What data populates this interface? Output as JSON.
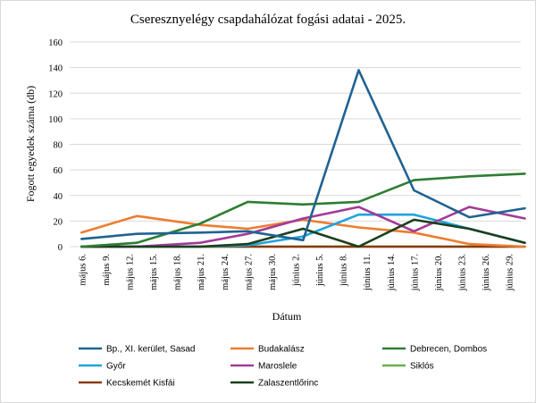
{
  "chart_data": {
    "type": "line",
    "title": "Cseresznyelégy csapdahálózat fogási adatai - 2025.",
    "xlabel": "Dátum",
    "ylabel": "Fogott egyedek száma (db)",
    "ylim": [
      0,
      160
    ],
    "yticks": [
      0,
      20,
      40,
      60,
      80,
      100,
      120,
      140,
      160
    ],
    "grid": true,
    "legend_position": "bottom",
    "categories": [
      "május 6.",
      "május 9.",
      "május 12.",
      "május 15.",
      "május 18.",
      "május 21.",
      "május 24.",
      "május 27.",
      "május 30.",
      "június 2.",
      "június 5.",
      "június 8.",
      "június 11.",
      "június 14.",
      "június 17.",
      "június 20.",
      "június 23.",
      "június 26.",
      "június 29."
    ],
    "series": [
      {
        "name": "Bp., XI. kerület, Sasad",
        "color": "#1f6391",
        "points": [
          [
            0,
            6
          ],
          [
            2.33,
            10
          ],
          [
            5,
            11
          ],
          [
            7,
            12
          ],
          [
            9.33,
            5
          ],
          [
            11.67,
            138
          ],
          [
            14,
            44
          ],
          [
            16.33,
            23
          ],
          [
            18.67,
            30
          ]
        ]
      },
      {
        "name": "Budakalász",
        "color": "#ed7d31",
        "points": [
          [
            0,
            11
          ],
          [
            2.33,
            24
          ],
          [
            5,
            17
          ],
          [
            7,
            14
          ],
          [
            9.33,
            21
          ],
          [
            11.67,
            15
          ],
          [
            14,
            11
          ],
          [
            16.33,
            2
          ],
          [
            18.67,
            0
          ]
        ]
      },
      {
        "name": "Debrecen, Dombos",
        "color": "#2e7d32",
        "points": [
          [
            0,
            0
          ],
          [
            2.33,
            3
          ],
          [
            5,
            18
          ],
          [
            7,
            35
          ],
          [
            9.33,
            33
          ],
          [
            11.67,
            35
          ],
          [
            14,
            52
          ],
          [
            16.33,
            55
          ],
          [
            18.67,
            57
          ]
        ]
      },
      {
        "name": "Győr",
        "color": "#1fa3dc",
        "points": [
          [
            0,
            0
          ],
          [
            2.33,
            0
          ],
          [
            5,
            0
          ],
          [
            7,
            1
          ],
          [
            9.33,
            8
          ],
          [
            11.67,
            25
          ],
          [
            14,
            25
          ],
          [
            16.33,
            14
          ],
          [
            18.67,
            3
          ]
        ]
      },
      {
        "name": "Maroslele",
        "color": "#a23a99",
        "points": [
          [
            0,
            0
          ],
          [
            2.33,
            0
          ],
          [
            5,
            3
          ],
          [
            7,
            10
          ],
          [
            9.33,
            22
          ],
          [
            11.67,
            31
          ],
          [
            14,
            12
          ],
          [
            16.33,
            31
          ],
          [
            18.67,
            22
          ]
        ]
      },
      {
        "name": "Siklós",
        "color": "#6ab04c",
        "points": [
          [
            0,
            0
          ],
          [
            2.33,
            0
          ],
          [
            5,
            0
          ],
          [
            7,
            0
          ],
          [
            9.33,
            0
          ],
          [
            11.67,
            0
          ],
          [
            14,
            0
          ],
          [
            16.33,
            0
          ],
          [
            18.67,
            0
          ]
        ]
      },
      {
        "name": "Kecskemét Kisfái",
        "color": "#8b3a0e",
        "points": [
          [
            0,
            0
          ],
          [
            2.33,
            0
          ],
          [
            5,
            0
          ],
          [
            7,
            0
          ],
          [
            9.33,
            0
          ],
          [
            11.67,
            0
          ],
          [
            14,
            0
          ],
          [
            16.33,
            0
          ],
          [
            18.67,
            0
          ]
        ]
      },
      {
        "name": "Zalaszentlőrinc",
        "color": "#1c3f1c",
        "points": [
          [
            0,
            0
          ],
          [
            2.33,
            0
          ],
          [
            5,
            0
          ],
          [
            7,
            2
          ],
          [
            9.33,
            14
          ],
          [
            11.67,
            0
          ],
          [
            14,
            21
          ],
          [
            16.33,
            14
          ],
          [
            18.67,
            3
          ]
        ]
      }
    ]
  }
}
